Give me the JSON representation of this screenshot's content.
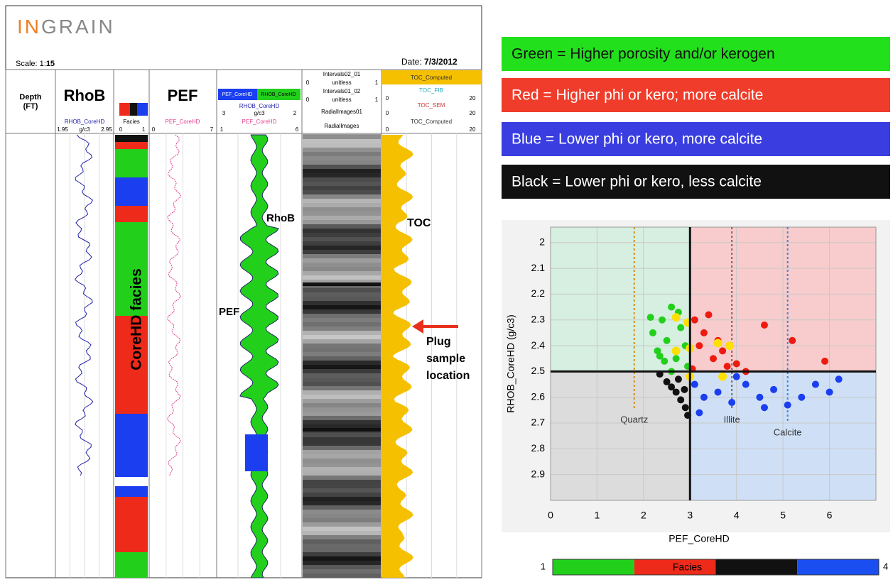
{
  "log": {
    "logo_a": "IN",
    "logo_b": "GRAIN",
    "scale_label": "Scale: 1:",
    "scale": "15",
    "date_label": "Date: ",
    "date": "7/3/2012",
    "depth_header": "Depth",
    "depth_unit": "(FT)",
    "rhob_title": "RhoB",
    "rhob_curve": "RHOB_CoreHD",
    "rhob_min": "1.95",
    "rhob_unit": "g/c3",
    "rhob_max": "2.95",
    "facies_curve": "Facies",
    "facies_min": "0",
    "facies_max": "1",
    "pef_title": "PEF",
    "pef_curve": "PEF_CoreHD",
    "pef_min": "0",
    "pef_max": "7",
    "combo_a": "PEF_CoreHD",
    "combo_b": "RHOB_CoreHD",
    "combo_rhob": "RHOB_CoreHD",
    "combo_rhob_min": "3",
    "combo_unit": "g/c3",
    "combo_rhob_max": "2",
    "combo_pef": "PEF_CoreHD",
    "combo_pef_min": "1",
    "combo_pef_max": "6",
    "img_rows": [
      "Intervals02_01",
      "unitless",
      "Intervals01_02",
      "unitless",
      "RadialImages01",
      "RadialImages"
    ],
    "img_min": "0",
    "img_max": "1",
    "toc_rows": [
      "TOC_Computed",
      "TOC_FIB",
      "TOC_SEM",
      "TOC_Computed"
    ],
    "toc_min": "0",
    "toc_max": "20",
    "ann_rhob": "RhoB",
    "ann_pef": "PEF",
    "ann_toc": "TOC",
    "ann_facies": "CoreHD facies",
    "ann_plug": [
      "Plug",
      "sample",
      "location"
    ]
  },
  "notes": [
    {
      "text": "Green = Higher porosity and/or kerogen",
      "color": "#22e01c",
      "text_color": "#111"
    },
    {
      "text": "Red  = Higher phi or kero;  more calcite",
      "color": "#f03c2a",
      "text_color": "#fff"
    },
    {
      "text": "Blue  = Lower phi or kero, more calcite",
      "color": "#3a3ee0",
      "text_color": "#fff"
    },
    {
      "text": "Black = Lower phi or kero, less calcite",
      "color": "#111111",
      "text_color": "#fff"
    }
  ],
  "chart_data": {
    "type": "scatter",
    "x_label": "PEF_CoreHD",
    "y_label": "RHOB_CoreHD (g/c3)",
    "xlim": [
      0,
      7
    ],
    "xticks": [
      0,
      1,
      2,
      3,
      4,
      5,
      6
    ],
    "ylim": [
      1.94,
      3.0
    ],
    "yticks": [
      2,
      2.1,
      2.2,
      2.3,
      2.4,
      2.5,
      2.6,
      2.7,
      2.8,
      2.9
    ],
    "y_inverted": true,
    "grid": true,
    "cutoffs": {
      "x": 3,
      "y": 2.5
    },
    "series": [
      {
        "color": "#22d01c",
        "x": [
          2.2,
          2.3,
          2.4,
          2.5,
          2.6,
          2.7,
          2.8,
          2.9,
          2.95,
          2.45,
          2.15,
          2.75,
          2.6,
          2.35
        ],
        "y": [
          2.35,
          2.42,
          2.3,
          2.38,
          2.25,
          2.45,
          2.33,
          2.4,
          2.48,
          2.46,
          2.29,
          2.27,
          2.5,
          2.44
        ]
      },
      {
        "color": "#ee1a10",
        "x": [
          3.1,
          3.2,
          3.3,
          3.5,
          3.6,
          3.8,
          4.0,
          3.4,
          4.6,
          5.2,
          5.9,
          3.05,
          4.2,
          3.7
        ],
        "y": [
          2.3,
          2.4,
          2.35,
          2.45,
          2.38,
          2.48,
          2.47,
          2.28,
          2.32,
          2.38,
          2.46,
          2.49,
          2.5,
          2.42
        ]
      },
      {
        "color": "#1a3ef0",
        "x": [
          3.1,
          3.3,
          3.6,
          3.9,
          4.2,
          4.5,
          4.8,
          5.1,
          5.4,
          5.7,
          6.0,
          6.2,
          3.2,
          4.0,
          4.6
        ],
        "y": [
          2.55,
          2.6,
          2.58,
          2.62,
          2.55,
          2.6,
          2.57,
          2.63,
          2.6,
          2.55,
          2.58,
          2.53,
          2.66,
          2.52,
          2.64
        ]
      },
      {
        "color": "#111111",
        "x": [
          2.35,
          2.5,
          2.6,
          2.7,
          2.8,
          2.9,
          2.95,
          2.75,
          2.88
        ],
        "y": [
          2.51,
          2.54,
          2.56,
          2.58,
          2.61,
          2.64,
          2.67,
          2.53,
          2.57
        ]
      },
      {
        "color": "#ffe000",
        "x": [
          2.7,
          2.95,
          2.7,
          3.0,
          3.6,
          3.85,
          3.0,
          3.7
        ],
        "y": [
          2.29,
          2.31,
          2.42,
          2.41,
          2.39,
          2.4,
          2.52,
          2.52
        ]
      }
    ],
    "minerals": [
      {
        "label": "Quartz",
        "x": 1.8,
        "y": 2.65,
        "color": "#d09020"
      },
      {
        "label": "Illite",
        "x": 3.9,
        "y": 2.65,
        "color": "#806060"
      },
      {
        "label": "Calcite",
        "x": 5.1,
        "y": 2.7,
        "color": "#3a8ad8"
      }
    ],
    "quadrant_colors": [
      "#d6efe0",
      "#f8cccc",
      "#dcdcdc",
      "#cfe0f6"
    ],
    "colorbar": {
      "min": 1,
      "max": 4,
      "label": "Facies",
      "colors": [
        "#22d01c",
        "#ee2a1a",
        "#111111",
        "#1a4ef0"
      ]
    }
  }
}
